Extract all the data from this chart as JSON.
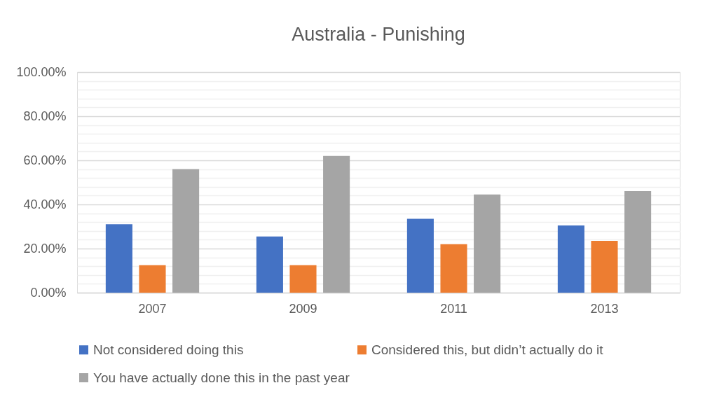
{
  "chart_data": {
    "type": "bar",
    "title": "Australia - Punishing",
    "categories": [
      "2007",
      "2009",
      "2011",
      "2013"
    ],
    "series": [
      {
        "name": "Not considered doing this",
        "color": "#4472c4",
        "values": [
          31,
          25.5,
          33.5,
          30.5
        ]
      },
      {
        "name": "Considered this, but didn’t actually do it",
        "color": "#ed7d31",
        "values": [
          12.5,
          12.5,
          22,
          23.5
        ]
      },
      {
        "name": "You have actually done this in the past year",
        "color": "#a5a5a5",
        "values": [
          56,
          62,
          44.5,
          46
        ]
      }
    ],
    "ylim": [
      0,
      100
    ],
    "yticks": [
      {
        "value": 0,
        "label": "0.00%"
      },
      {
        "value": 4,
        "label": null
      },
      {
        "value": 8,
        "label": null
      },
      {
        "value": 12,
        "label": null
      },
      {
        "value": 16,
        "label": null
      },
      {
        "value": 20,
        "label": "20.00%"
      },
      {
        "value": 24,
        "label": null
      },
      {
        "value": 28,
        "label": null
      },
      {
        "value": 32,
        "label": null
      },
      {
        "value": 36,
        "label": null
      },
      {
        "value": 40,
        "label": "40.00%"
      },
      {
        "value": 44,
        "label": null
      },
      {
        "value": 48,
        "label": null
      },
      {
        "value": 52,
        "label": null
      },
      {
        "value": 56,
        "label": null
      },
      {
        "value": 60,
        "label": "60.00%"
      },
      {
        "value": 64,
        "label": null
      },
      {
        "value": 68,
        "label": null
      },
      {
        "value": 72,
        "label": null
      },
      {
        "value": 76,
        "label": null
      },
      {
        "value": 80,
        "label": "80.00%"
      },
      {
        "value": 84,
        "label": null
      },
      {
        "value": 88,
        "label": null
      },
      {
        "value": 92,
        "label": null
      },
      {
        "value": 96,
        "label": null
      },
      {
        "value": 100,
        "label": "100.00%"
      }
    ],
    "grid": true,
    "legend": "bottom"
  }
}
